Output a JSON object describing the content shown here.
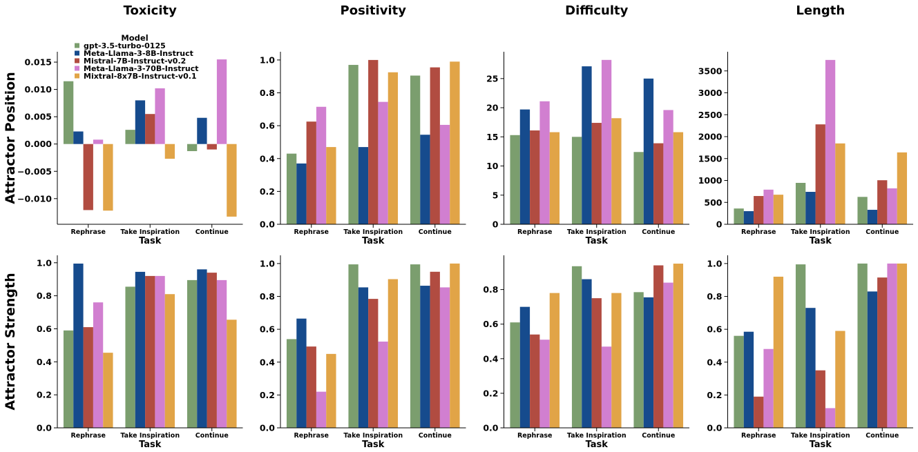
{
  "chart_data": {
    "type": "bar",
    "xlabel": "Task",
    "categories": [
      "Rephrase",
      "Take Inspiration",
      "Continue"
    ],
    "facets": {
      "columns": [
        "Toxicity",
        "Positivity",
        "Difficulty",
        "Length"
      ],
      "rows": [
        "Attractor Position",
        "Attractor Strength"
      ]
    },
    "legend": {
      "title": "Model",
      "placement": "upper-left"
    },
    "grid": false,
    "series": [
      {
        "name": "gpt-3.5-turbo-0125",
        "color": "#7b9e6e"
      },
      {
        "name": "Meta-Llama-3-8B-Instruct",
        "color": "#164b8d"
      },
      {
        "name": "Mistral-7B-Instruct-v0.2",
        "color": "#b14c41"
      },
      {
        "name": "Meta-Llama-3-70B-Instruct",
        "color": "#d17fd0"
      },
      {
        "name": "Mixtral-8x7B-Instruct-v0.1",
        "color": "#e1a447"
      }
    ],
    "panels": [
      {
        "ylim": [
          -0.0147,
          0.0169
        ],
        "yticks": [
          -0.01,
          -0.005,
          0,
          0.005,
          0.01,
          0.015
        ],
        "ytick_labels": [
          "−0.010",
          "−0.005",
          "0.000",
          "0.005",
          "0.010",
          "0.015"
        ],
        "values": [
          [
            0.0115,
            0.0026,
            -0.0013
          ],
          [
            0.0023,
            0.008,
            0.0048
          ],
          [
            -0.0121,
            0.0055,
            -0.001
          ],
          [
            0.0008,
            0.0102,
            0.0155
          ],
          [
            -0.0122,
            -0.0027,
            -0.0133
          ]
        ]
      },
      {
        "ylim": [
          0,
          1.05
        ],
        "yticks": [
          0,
          0.2,
          0.4,
          0.6,
          0.8,
          1.0
        ],
        "ytick_labels": [
          "0.0",
          "0.2",
          "0.4",
          "0.6",
          "0.8",
          "1.0"
        ],
        "values": [
          [
            0.43,
            0.97,
            0.905
          ],
          [
            0.37,
            0.47,
            0.545
          ],
          [
            0.625,
            1.0,
            0.955
          ],
          [
            0.715,
            0.745,
            0.605
          ],
          [
            0.47,
            0.925,
            0.99
          ]
        ]
      },
      {
        "ylim": [
          0,
          29.6
        ],
        "yticks": [
          0,
          5,
          10,
          15,
          20,
          25
        ],
        "ytick_labels": [
          "0",
          "5",
          "10",
          "15",
          "20",
          "25"
        ],
        "values": [
          [
            15.3,
            15.0,
            12.4
          ],
          [
            19.7,
            27.1,
            25.0
          ],
          [
            16.1,
            17.4,
            13.9
          ],
          [
            21.1,
            28.2,
            19.6
          ],
          [
            15.8,
            18.2,
            15.8
          ]
        ]
      },
      {
        "ylim": [
          0,
          3937
        ],
        "yticks": [
          0,
          500,
          1000,
          1500,
          2000,
          2500,
          3000,
          3500
        ],
        "ytick_labels": [
          "0",
          "500",
          "1000",
          "1500",
          "2000",
          "2500",
          "3000",
          "3500"
        ],
        "values": [
          [
            360,
            945,
            625
          ],
          [
            300,
            740,
            330
          ],
          [
            645,
            2280,
            1005
          ],
          [
            790,
            3750,
            820
          ],
          [
            675,
            1845,
            1640
          ]
        ]
      },
      {
        "ylim": [
          0,
          1.045
        ],
        "yticks": [
          0,
          0.2,
          0.4,
          0.6,
          0.8,
          1.0
        ],
        "ytick_labels": [
          "0.0",
          "0.2",
          "0.4",
          "0.6",
          "0.8",
          "1.0"
        ],
        "values": [
          [
            0.59,
            0.855,
            0.895
          ],
          [
            0.995,
            0.945,
            0.96
          ],
          [
            0.61,
            0.92,
            0.94
          ],
          [
            0.76,
            0.92,
            0.895
          ],
          [
            0.455,
            0.81,
            0.655
          ]
        ]
      },
      {
        "ylim": [
          0,
          1.05
        ],
        "yticks": [
          0,
          0.2,
          0.4,
          0.6,
          0.8,
          1.0
        ],
        "ytick_labels": [
          "0.0",
          "0.2",
          "0.4",
          "0.6",
          "0.8",
          "1.0"
        ],
        "values": [
          [
            0.54,
            0.995,
            0.995
          ],
          [
            0.665,
            0.855,
            0.865
          ],
          [
            0.495,
            0.785,
            0.95
          ],
          [
            0.22,
            0.525,
            0.855
          ],
          [
            0.45,
            0.905,
            1.0
          ]
        ]
      },
      {
        "ylim": [
          0,
          0.998
        ],
        "yticks": [
          0,
          0.2,
          0.4,
          0.6,
          0.8
        ],
        "ytick_labels": [
          "0.0",
          "0.2",
          "0.4",
          "0.6",
          "0.8"
        ],
        "values": [
          [
            0.61,
            0.935,
            0.785
          ],
          [
            0.7,
            0.86,
            0.755
          ],
          [
            0.54,
            0.75,
            0.94
          ],
          [
            0.51,
            0.47,
            0.84
          ],
          [
            0.78,
            0.78,
            0.95
          ]
        ]
      },
      {
        "ylim": [
          0,
          1.05
        ],
        "yticks": [
          0,
          0.2,
          0.4,
          0.6,
          0.8,
          1.0
        ],
        "ytick_labels": [
          "0.0",
          "0.2",
          "0.4",
          "0.6",
          "0.8",
          "1.0"
        ],
        "values": [
          [
            0.56,
            0.995,
            1.0
          ],
          [
            0.585,
            0.73,
            0.83
          ],
          [
            0.19,
            0.35,
            0.915
          ],
          [
            0.48,
            0.12,
            1.0
          ],
          [
            0.92,
            0.59,
            1.0
          ]
        ]
      }
    ]
  }
}
